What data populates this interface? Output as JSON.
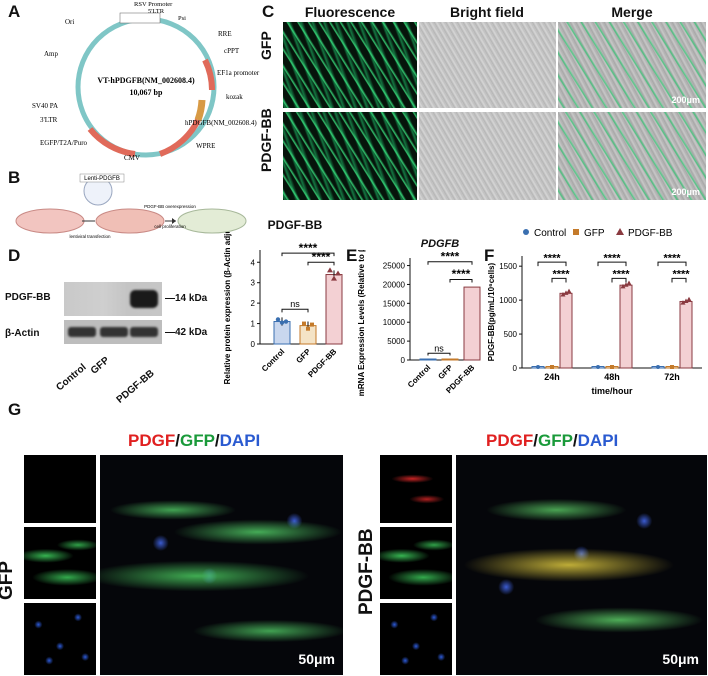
{
  "panel_labels": {
    "a": "A",
    "b": "B",
    "c": "C",
    "d": "D",
    "e": "E",
    "f": "F",
    "g": "G"
  },
  "panel_a": {
    "center_name": "VT-hPDGFB(NM_002608.4)",
    "center_size": "10,067 bp",
    "features": [
      "RSV Promoter",
      "5'LTR",
      "Psi",
      "Ori",
      "RRE",
      "cPPT",
      "Amp",
      "EF1a promoter",
      "kozak",
      "SV40 PA",
      "hPDGFB(NM_002608.4)",
      "3'LTR",
      "EGFP/T2A/Puro",
      "WPRE",
      "CMV"
    ]
  },
  "panel_b": {
    "tube_label": "Lenti-PDGFB",
    "step1": "lentiviral transfection",
    "step2": "PDGF-BB overexpression",
    "step3": "cell proliferation"
  },
  "panel_c": {
    "col_headers": [
      "Fluorescence",
      "Bright field",
      "Merge"
    ],
    "row_labels": [
      "GFP",
      "PDGF-BB"
    ],
    "scale": "200μm"
  },
  "panel_d": {
    "title": "PDGF-BB",
    "blot_rows": [
      {
        "label": "PDGF-BB",
        "kda": "—14 kDa"
      },
      {
        "label": "β-Actin",
        "kda": "—42 kDa"
      }
    ],
    "blot_lanes": [
      "Control",
      "GFP",
      "PDGF-BB"
    ],
    "sig_inner": "ns",
    "sig_outer": "****",
    "sig_mid": "****"
  },
  "panel_e": {
    "title": "PDGFB",
    "sig_inner": "ns",
    "sig_outer": "****",
    "sig_mid": "****"
  },
  "panel_f": {
    "sig": "****"
  },
  "panel_g": {
    "title_parts": [
      "PDGF",
      "/",
      "GFP",
      "/",
      "DAPI"
    ],
    "rows": [
      "GFP",
      "PDGF-BB"
    ],
    "scale": "50μm"
  },
  "colors": {
    "control": "#3a6fb0",
    "gfp": "#c47a2a",
    "pdgf": "#8a3a40",
    "pdgf_bar": "#f3d0d3",
    "control_bar": "#c9d7ee",
    "gfp_bar": "#f4e3c6",
    "red": "#e02020",
    "green": "#1a9a3a",
    "blue": "#2a5ad0"
  },
  "chart_data": [
    {
      "type": "bar",
      "id": "D",
      "categories": [
        "Control",
        "GFP",
        "PDGF-BB"
      ],
      "values": [
        1.1,
        0.9,
        3.4
      ],
      "points": [
        [
          1.2,
          1.05,
          1.1
        ],
        [
          1.0,
          0.75,
          0.95
        ],
        [
          3.6,
          3.2,
          3.45
        ]
      ],
      "ylabel": "Relative protein expression (β-Actin adjusted)",
      "yticks": [
        0,
        1,
        2,
        3,
        4
      ],
      "ylim": [
        0,
        4.6
      ]
    },
    {
      "type": "bar",
      "id": "E",
      "categories": [
        "Control",
        "GFP",
        "PDGF-BB"
      ],
      "values": [
        100,
        100,
        19300
      ],
      "ylabel": "mRNA Expression Levels (Relative to β-Actin)",
      "yticks": [
        0,
        5000,
        10000,
        15000,
        20000,
        25000
      ],
      "ylim": [
        0,
        27000
      ]
    },
    {
      "type": "bar",
      "id": "F",
      "categories": [
        "24h",
        "48h",
        "72h"
      ],
      "series": [
        {
          "name": "Control",
          "values": [
            0,
            0,
            0
          ]
        },
        {
          "name": "GFP",
          "values": [
            0,
            0,
            0
          ]
        },
        {
          "name": "PDGF-BB",
          "values": [
            1100,
            1220,
            980
          ]
        }
      ],
      "ylabel": "PDGF-BB(pg/mL/10⁶cells)",
      "xlabel": "time/hour",
      "yticks": [
        0,
        500,
        1000,
        1500
      ],
      "ylim": [
        0,
        1650
      ],
      "legend": "top"
    }
  ]
}
